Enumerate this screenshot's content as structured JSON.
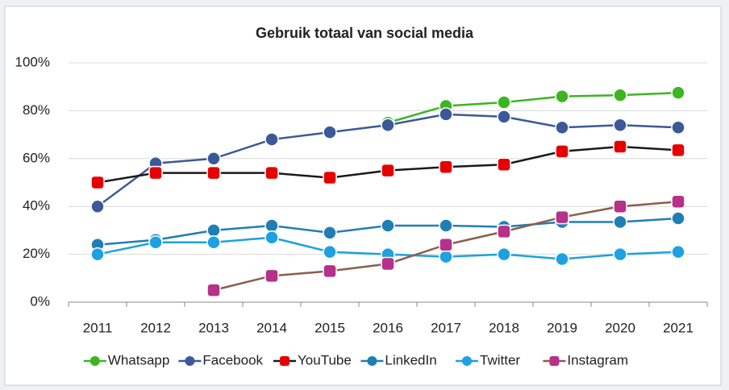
{
  "chart_data": {
    "type": "line",
    "title": "Gebruik totaal van social media",
    "categories": [
      "2011",
      "2012",
      "2013",
      "2014",
      "2015",
      "2016",
      "2017",
      "2018",
      "2019",
      "2020",
      "2021"
    ],
    "series": [
      {
        "name": "Whatsapp",
        "color": "#3cb521",
        "marker_color": "#3cb521",
        "values": [
          null,
          null,
          null,
          null,
          null,
          75,
          82,
          83.5,
          86,
          86.5,
          87.5
        ]
      },
      {
        "name": "Facebook",
        "color": "#3b5998",
        "marker_color": "#3b5998",
        "values": [
          40,
          58,
          60,
          68,
          71,
          74,
          78.5,
          77.5,
          73,
          74,
          73
        ]
      },
      {
        "name": "YouTube",
        "color": "#1a1a1a",
        "marker_color": "#e60000",
        "values": [
          50,
          54,
          54,
          54,
          52,
          55,
          56.5,
          57.5,
          63,
          65,
          63.5
        ]
      },
      {
        "name": "LinkedIn",
        "color": "#1f7fb5",
        "marker_color": "#1f7fb5",
        "values": [
          24,
          26,
          30,
          32,
          29,
          32,
          32,
          31.5,
          33.5,
          33.5,
          35
        ]
      },
      {
        "name": "Twitter",
        "color": "#1da1e0",
        "marker_color": "#1da1e0",
        "values": [
          20,
          25,
          25,
          27,
          21,
          20,
          19,
          20,
          18,
          20,
          21
        ]
      },
      {
        "name": "Instagram",
        "color": "#8b5e4b",
        "marker_color": "#b5318a",
        "values": [
          null,
          null,
          5,
          11,
          13,
          16,
          24,
          29.5,
          35.5,
          40,
          42
        ]
      }
    ],
    "ylim": [
      0,
      100
    ],
    "yticks": [
      {
        "value": 0,
        "label": "0%"
      },
      {
        "value": 20,
        "label": "20%"
      },
      {
        "value": 40,
        "label": "40%"
      },
      {
        "value": 60,
        "label": "60%"
      },
      {
        "value": 80,
        "label": "80%"
      },
      {
        "value": 100,
        "label": "100%"
      }
    ],
    "grid": true,
    "legend": "bottom"
  }
}
